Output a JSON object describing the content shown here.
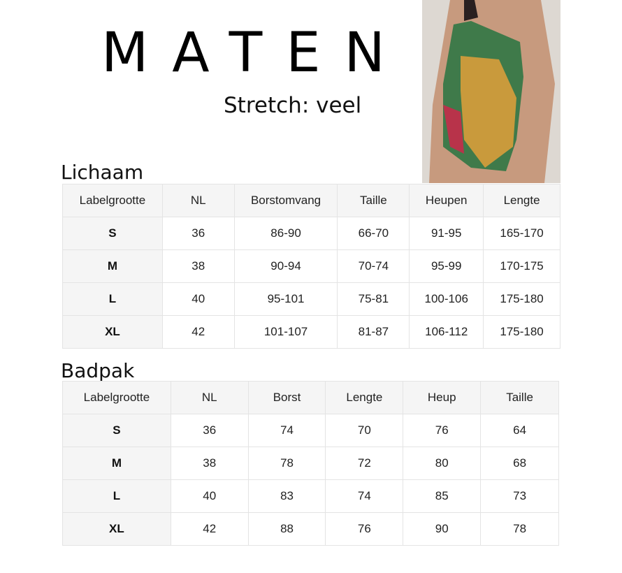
{
  "title": "MATEN",
  "stretch": "Stretch: veel",
  "lichaam": {
    "heading": "Lichaam",
    "headers": [
      "Labelgrootte",
      "NL",
      "Borstomvang",
      "Taille",
      "Heupen",
      "Lengte"
    ],
    "rows": [
      [
        "S",
        "36",
        "86-90",
        "66-70",
        "91-95",
        "165-170"
      ],
      [
        "M",
        "38",
        "90-94",
        "70-74",
        "95-99",
        "170-175"
      ],
      [
        "L",
        "40",
        "95-101",
        "75-81",
        "100-106",
        "175-180"
      ],
      [
        "XL",
        "42",
        "101-107",
        "81-87",
        "106-112",
        "175-180"
      ]
    ]
  },
  "badpak": {
    "heading": "Badpak",
    "headers": [
      "Labelgrootte",
      "NL",
      "Borst",
      "Lengte",
      "Heup",
      "Taille"
    ],
    "rows": [
      [
        "S",
        "36",
        "74",
        "70",
        "76",
        "64"
      ],
      [
        "M",
        "38",
        "78",
        "72",
        "80",
        "68"
      ],
      [
        "L",
        "40",
        "83",
        "74",
        "85",
        "73"
      ],
      [
        "XL",
        "42",
        "88",
        "76",
        "90",
        "78"
      ]
    ]
  }
}
